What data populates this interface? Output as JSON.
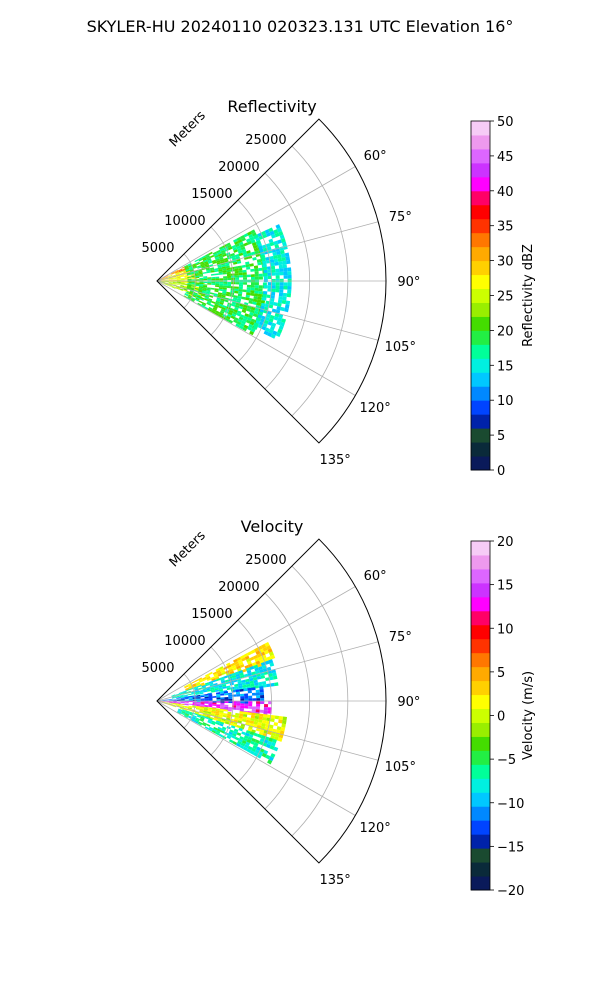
{
  "figure": {
    "suptitle": "SKYLER-HU  20240110  020323.131 UTC Elevation 16°"
  },
  "chart_data": [
    {
      "type": "polar-sector",
      "title": "Reflectivity",
      "radial_axis_label": "Meters",
      "radial_ticks": [
        "5000",
        "10000",
        "15000",
        "20000",
        "25000"
      ],
      "radial_tick_values": [
        5000,
        10000,
        15000,
        20000,
        25000
      ],
      "angle_ticks": [
        "60°",
        "75°",
        "90°",
        "105°",
        "120°",
        "135°"
      ],
      "angle_tick_values": [
        60,
        75,
        90,
        105,
        120,
        135
      ],
      "theta_range_deg": [
        45,
        135
      ],
      "r_range": [
        0,
        30000
      ],
      "grid": true,
      "colorbar": {
        "label": "Reflectivity dBZ",
        "range": [
          0,
          50
        ],
        "ticks": [
          "0",
          "5",
          "10",
          "15",
          "20",
          "25",
          "30",
          "35",
          "40",
          "45",
          "50"
        ],
        "colors": [
          "#0a1a5a",
          "#0a2a3a",
          "#1a4a30",
          "#0022aa",
          "#0044ff",
          "#0088ff",
          "#00c8ff",
          "#00f0e0",
          "#00ff99",
          "#22ee44",
          "#44dd00",
          "#99ee00",
          "#ccff00",
          "#ffff00",
          "#ffd000",
          "#ffaa00",
          "#ff7700",
          "#ff3300",
          "#ff0000",
          "#ff0066",
          "#ff00ff",
          "#cc33ff",
          "#dd66ff",
          "#ee99ee",
          "#f6ccf6"
        ]
      },
      "echo_summary": "returns within ~17000 m between 60° and 120°; strongest (30-38 dBZ) near the radar, mostly 15-25 dBZ further out",
      "echo_bands": [
        {
          "theta": [
            62,
            68
          ],
          "r": [
            0,
            4000
          ],
          "value": 33
        },
        {
          "theta": [
            68,
            92
          ],
          "r": [
            0,
            5000
          ],
          "value": 27
        },
        {
          "theta": [
            92,
            112
          ],
          "r": [
            0,
            6000
          ],
          "value": 24
        },
        {
          "theta": [
            62,
            118
          ],
          "r": [
            4000,
            14000
          ],
          "value": 19
        },
        {
          "theta": [
            65,
            115
          ],
          "r": [
            14000,
            17500
          ],
          "value": 15
        }
      ]
    },
    {
      "type": "polar-sector",
      "title": "Velocity",
      "radial_axis_label": "Meters",
      "radial_ticks": [
        "5000",
        "10000",
        "15000",
        "20000",
        "25000"
      ],
      "radial_tick_values": [
        5000,
        10000,
        15000,
        20000,
        25000
      ],
      "angle_ticks": [
        "60°",
        "75°",
        "90°",
        "105°",
        "120°",
        "135°"
      ],
      "angle_tick_values": [
        60,
        75,
        90,
        105,
        120,
        135
      ],
      "theta_range_deg": [
        45,
        135
      ],
      "r_range": [
        0,
        30000
      ],
      "grid": true,
      "colorbar": {
        "label": "Velocity (m/s)",
        "range": [
          -20,
          20
        ],
        "ticks": [
          "−20",
          "−15",
          "−10",
          "−5",
          "0",
          "5",
          "10",
          "15",
          "20"
        ],
        "colors": [
          "#0a1a5a",
          "#0a2a3a",
          "#1a4a30",
          "#0022aa",
          "#0044ff",
          "#0088ff",
          "#00c8ff",
          "#00f0e0",
          "#00ff99",
          "#22ee44",
          "#44dd00",
          "#99ee00",
          "#ccff00",
          "#ffff00",
          "#ffd000",
          "#ffaa00",
          "#ff7700",
          "#ff3300",
          "#ff0000",
          "#ff0066",
          "#ff00ff",
          "#cc33ff",
          "#dd66ff",
          "#ee99ee",
          "#f6ccf6"
        ]
      },
      "echo_summary": "same echo region; outbound (warm) velocities to the north-east, inbound (cool) bands near 90°, strong couplet near 95-100°",
      "echo_bands": [
        {
          "theta": [
            62,
            70
          ],
          "r": [
            4000,
            16000
          ],
          "value": 3
        },
        {
          "theta": [
            70,
            82
          ],
          "r": [
            2000,
            16000
          ],
          "value": -8
        },
        {
          "theta": [
            82,
            90
          ],
          "r": [
            0,
            14000
          ],
          "value": -12
        },
        {
          "theta": [
            90,
            97
          ],
          "r": [
            0,
            15000
          ],
          "value": 14
        },
        {
          "theta": [
            97,
            108
          ],
          "r": [
            0,
            17000
          ],
          "value": 1
        },
        {
          "theta": [
            108,
            118
          ],
          "r": [
            3000,
            17000
          ],
          "value": -7
        }
      ]
    }
  ]
}
